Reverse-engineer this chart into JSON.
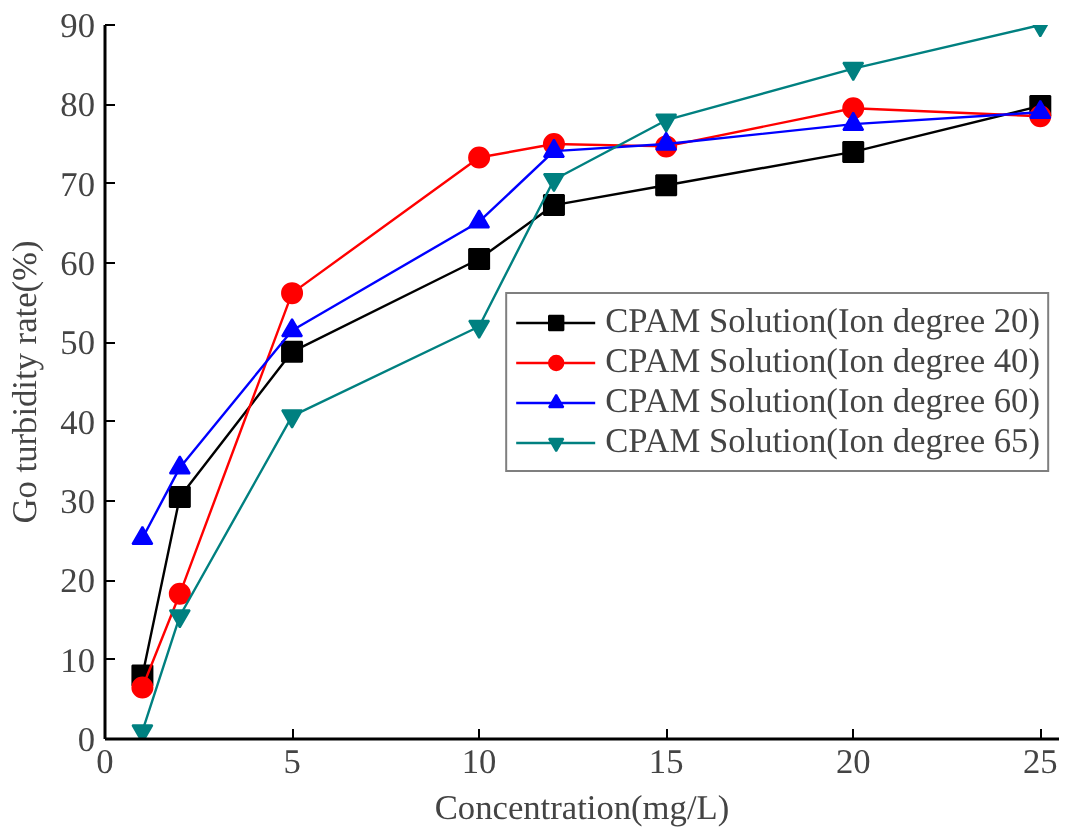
{
  "chart_data": {
    "type": "line",
    "xlabel": "Concentration(mg/L)",
    "ylabel": "Go turbidity rate(%)",
    "x": [
      1,
      2,
      5,
      10,
      12,
      15,
      20,
      25
    ],
    "xlim": [
      0,
      25.5
    ],
    "ylim": [
      0,
      90
    ],
    "xticks": [
      0,
      5,
      10,
      15,
      20,
      25
    ],
    "yticks": [
      0,
      10,
      20,
      30,
      40,
      50,
      60,
      70,
      80,
      90
    ],
    "grid": false,
    "legend": "right",
    "line_style": "solid",
    "series": [
      {
        "name": "CPAM Solution(Ion degree 20)",
        "color": "#000000",
        "marker": "square",
        "values": [
          8,
          30.5,
          48.8,
          60.5,
          67.3,
          69.8,
          74,
          79.8
        ]
      },
      {
        "name": "CPAM Solution(Ion degree 40)",
        "color": "#ff0000",
        "marker": "circle",
        "values": [
          6.5,
          18.3,
          56.2,
          73.3,
          75,
          74.7,
          79.5,
          78.5
        ]
      },
      {
        "name": "CPAM Solution(Ion degree 60)",
        "color": "#0000ff",
        "marker": "triangle",
        "values": [
          25.3,
          34.2,
          51.5,
          65.2,
          74.1,
          75,
          77.5,
          79
        ]
      },
      {
        "name": "CPAM Solution(Ion degree 65)",
        "color": "#008080",
        "marker": "triangle_down",
        "values": [
          1,
          15.5,
          40.7,
          52,
          70.5,
          78,
          84.5,
          90
        ]
      }
    ]
  }
}
